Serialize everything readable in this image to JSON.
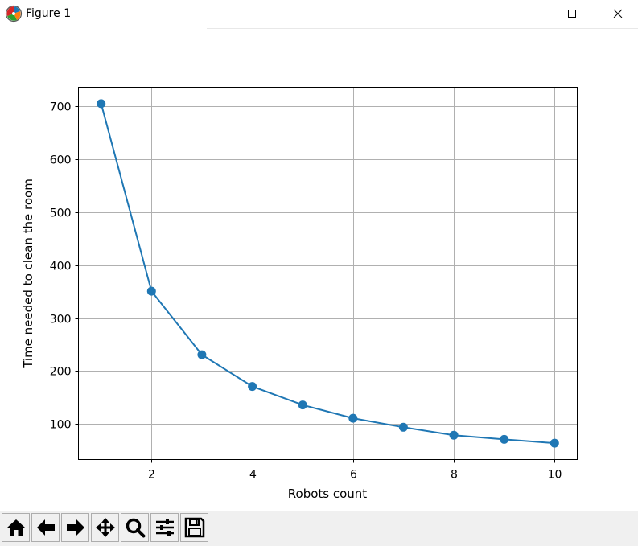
{
  "window": {
    "title": "Figure 1",
    "app_icon": "matplotlib-icon",
    "controls": [
      "minimize-icon",
      "maximize-icon",
      "close-icon"
    ]
  },
  "toolbar": {
    "buttons": [
      {
        "name": "home-icon",
        "label": "Home"
      },
      {
        "name": "back-arrow-icon",
        "label": "Back"
      },
      {
        "name": "forward-arrow-icon",
        "label": "Forward"
      },
      {
        "name": "pan-icon",
        "label": "Pan"
      },
      {
        "name": "zoom-icon",
        "label": "Zoom"
      },
      {
        "name": "configure-subplots-icon",
        "label": "Subplots"
      },
      {
        "name": "save-icon",
        "label": "Save"
      }
    ]
  },
  "chart_data": {
    "type": "line",
    "title": "",
    "xlabel": "Robots count",
    "ylabel": "Time needed to clean the room",
    "x": [
      1,
      2,
      3,
      4,
      5,
      6,
      7,
      8,
      9,
      10
    ],
    "series": [
      {
        "values": [
          705,
          351,
          231,
          171,
          136,
          111,
          94,
          79,
          71,
          64
        ],
        "color": "#1f77b4",
        "marker": "circle"
      }
    ],
    "xticks": [
      2,
      4,
      6,
      8,
      10
    ],
    "yticks": [
      100,
      200,
      300,
      400,
      500,
      600,
      700
    ],
    "xlim": [
      0.55,
      10.45
    ],
    "ylim": [
      32.95,
      736.05
    ],
    "grid": true,
    "legend": "none"
  }
}
